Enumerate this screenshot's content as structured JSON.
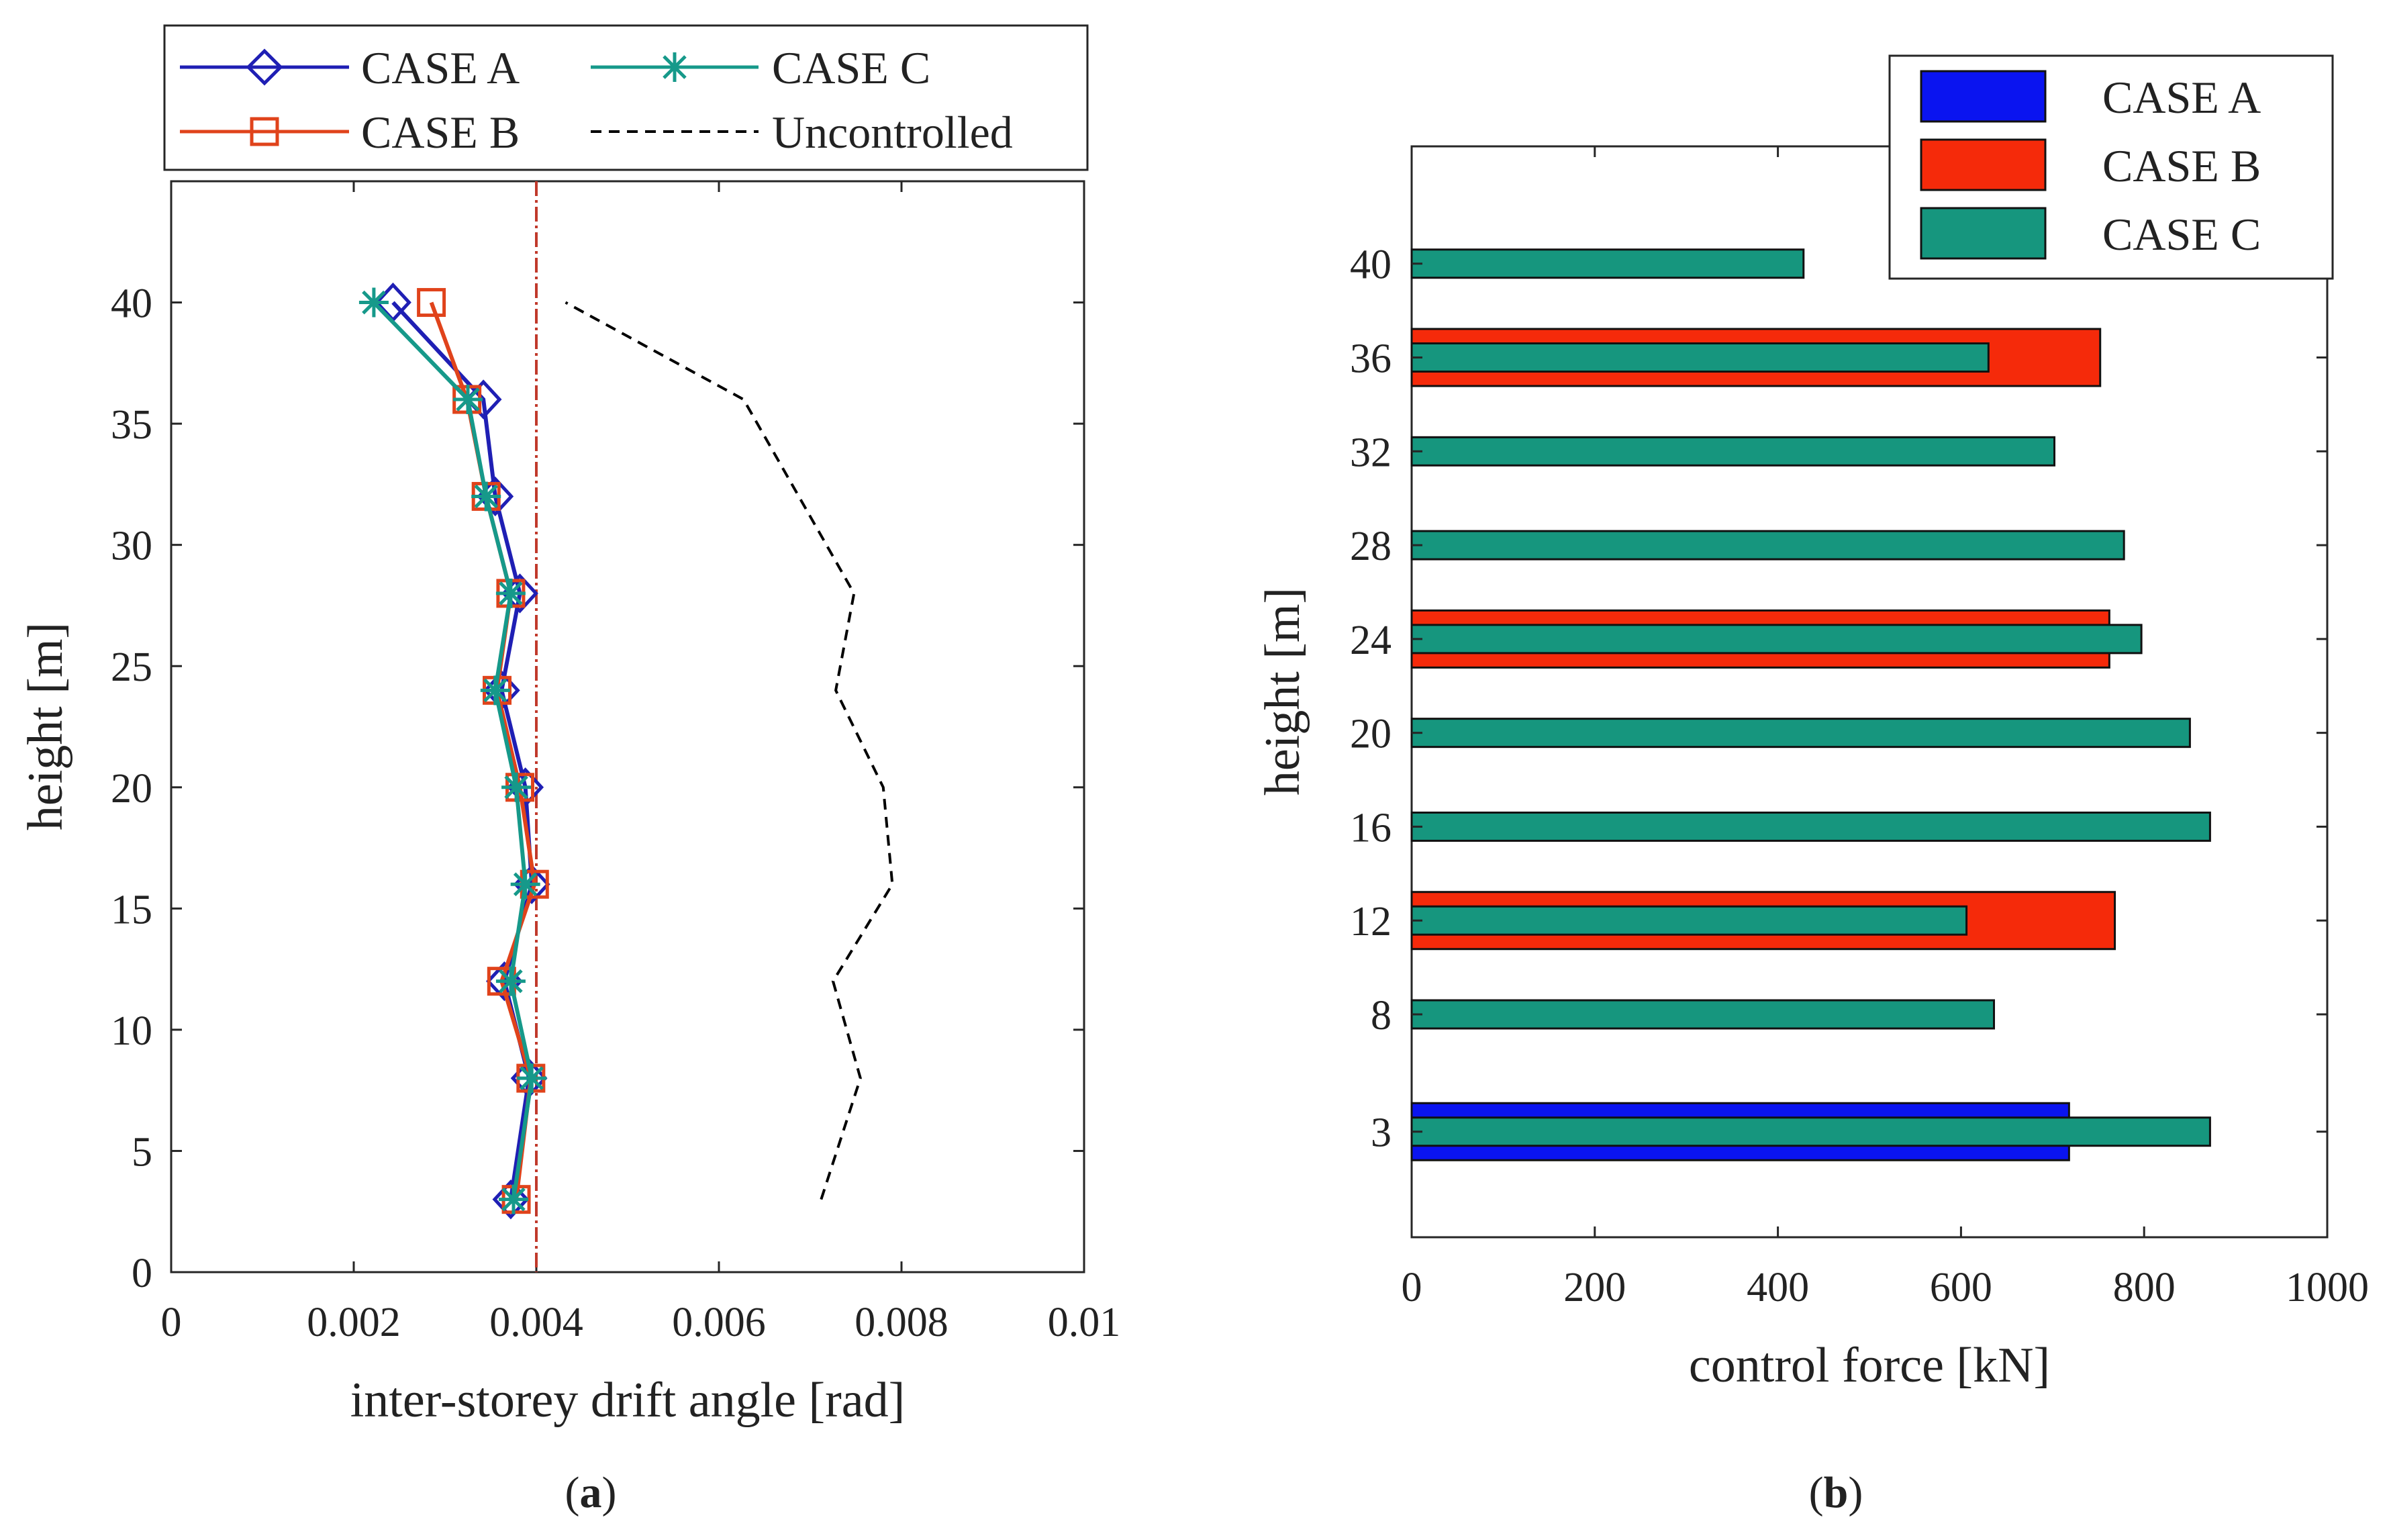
{
  "chart_data": [
    {
      "id": "a",
      "type": "line",
      "caption": {
        "open": "(",
        "letter": "a",
        "close": ")"
      },
      "xlabel": "inter-storey drift angle [rad]",
      "ylabel": "height [m]",
      "xlim": [
        0,
        0.01
      ],
      "ylim": [
        0,
        45
      ],
      "xticks": [
        0,
        0.002,
        0.004,
        0.006,
        0.008,
        0.01
      ],
      "xtick_labels": [
        "0",
        "0.002",
        "0.004",
        "0.006",
        "0.008",
        "0.01"
      ],
      "yticks": [
        0,
        5,
        10,
        15,
        20,
        25,
        30,
        35,
        40
      ],
      "ytick_labels": [
        "0",
        "5",
        "10",
        "15",
        "20",
        "25",
        "30",
        "35",
        "40"
      ],
      "reference_line": {
        "x": 0.004,
        "color": "#c0392b",
        "style": "dash-dot"
      },
      "legend_position": "top (outside axes)",
      "series": [
        {
          "name": "CASE A",
          "color": "#1f1fb4",
          "marker": "diamond",
          "heights": [
            3,
            8,
            12,
            16,
            20,
            24,
            28,
            32,
            36,
            40
          ],
          "values": [
            0.00372,
            0.00392,
            0.00365,
            0.00395,
            0.00388,
            0.00362,
            0.00382,
            0.00355,
            0.00342,
            0.00243
          ]
        },
        {
          "name": "CASE B",
          "color": "#e0431b",
          "marker": "square",
          "heights": [
            3,
            8,
            12,
            16,
            20,
            24,
            28,
            32,
            36,
            40
          ],
          "values": [
            0.00378,
            0.00394,
            0.00362,
            0.00398,
            0.00382,
            0.00357,
            0.00372,
            0.00345,
            0.00324,
            0.00285
          ]
        },
        {
          "name": "CASE C",
          "color": "#16998a",
          "marker": "asterisk",
          "heights": [
            3,
            8,
            12,
            16,
            20,
            24,
            28,
            32,
            36,
            40
          ],
          "values": [
            0.00375,
            0.00395,
            0.00372,
            0.00388,
            0.00378,
            0.00355,
            0.00372,
            0.00345,
            0.00325,
            0.00222
          ]
        },
        {
          "name": "Uncontrolled",
          "color": "#000000",
          "marker": "none",
          "style": "dashed",
          "heights": [
            3,
            8,
            12,
            16,
            20,
            24,
            28,
            36,
            40
          ],
          "values": [
            0.00712,
            0.00755,
            0.00725,
            0.0079,
            0.0078,
            0.00728,
            0.00748,
            0.00627,
            0.00432
          ]
        }
      ]
    },
    {
      "id": "b",
      "type": "bar",
      "orientation": "horizontal",
      "caption": {
        "open": "(",
        "letter": "b",
        "close": ")"
      },
      "xlabel": "control force [kN]",
      "ylabel": "height [m]",
      "xlim": [
        0,
        1000
      ],
      "ylim": [
        -1.5,
        45
      ],
      "xticks": [
        0,
        200,
        400,
        600,
        800,
        1000
      ],
      "xtick_labels": [
        "0",
        "200",
        "400",
        "600",
        "800",
        "1000"
      ],
      "categories": [
        "3",
        "8",
        "12",
        "16",
        "20",
        "24",
        "28",
        "32",
        "36",
        "40"
      ],
      "category_values": [
        3,
        8,
        12,
        16,
        20,
        24,
        28,
        32,
        36,
        40
      ],
      "legend_position": "top-right",
      "series": [
        {
          "name": "CASE A",
          "color": "#0a14f0",
          "values": [
            718,
            null,
            null,
            null,
            null,
            null,
            null,
            null,
            null,
            null
          ]
        },
        {
          "name": "CASE B",
          "color": "#f52a0a",
          "values": [
            null,
            null,
            768,
            null,
            null,
            762,
            null,
            null,
            752,
            null
          ]
        },
        {
          "name": "CASE C",
          "color": "#16967e",
          "values": [
            872,
            636,
            606,
            872,
            850,
            797,
            778,
            702,
            630,
            428
          ]
        }
      ]
    }
  ]
}
